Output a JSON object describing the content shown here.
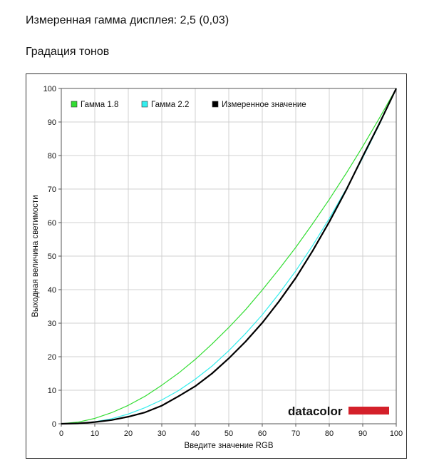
{
  "header": {
    "measured_gamma": "Измеренная гамма дисплея: 2,5 (0,03)",
    "section_title": "Градация тонов"
  },
  "logo": {
    "text": "datacolor",
    "accent_color": "#d4202a"
  },
  "chart_data": {
    "type": "line",
    "title": "",
    "xlabel": "Введите значение RGB",
    "ylabel": "Выходная величина светимости",
    "xlim": [
      0,
      100
    ],
    "ylim": [
      0,
      100
    ],
    "xticks": [
      "0",
      "10",
      "20",
      "30",
      "40",
      "50",
      "60",
      "70",
      "80",
      "90",
      "100"
    ],
    "yticks": [
      "0",
      "10",
      "20",
      "30",
      "40",
      "50",
      "60",
      "70",
      "80",
      "90",
      "100"
    ],
    "grid": true,
    "legend_position": "top-left",
    "x": [
      0,
      5,
      10,
      15,
      20,
      25,
      30,
      35,
      40,
      45,
      50,
      55,
      60,
      65,
      70,
      75,
      80,
      85,
      90,
      95,
      100
    ],
    "series": [
      {
        "name": "Гамма 1.8",
        "color": "#33dd33",
        "values": [
          0,
          0.5,
          1.6,
          3.3,
          5.5,
          8.2,
          11.5,
          15.1,
          19.2,
          23.8,
          28.7,
          34.0,
          39.9,
          46.1,
          52.6,
          59.6,
          66.9,
          74.6,
          82.7,
          91.2,
          100
        ]
      },
      {
        "name": "Гамма 2.2",
        "color": "#33eeee",
        "values": [
          0,
          0.1,
          0.6,
          1.5,
          2.9,
          4.8,
          7.1,
          9.9,
          13.3,
          17.2,
          21.8,
          26.9,
          32.5,
          38.8,
          45.6,
          53.1,
          61.2,
          69.9,
          79.3,
          89.3,
          100
        ]
      },
      {
        "name": "Измеренное значение",
        "color": "#000000",
        "values": [
          0,
          0.1,
          0.5,
          1.1,
          2.1,
          3.4,
          5.4,
          8.2,
          11.2,
          15.0,
          19.5,
          24.5,
          30.1,
          36.5,
          43.5,
          51.5,
          60.2,
          69.6,
          79.7,
          89.6,
          100
        ]
      }
    ]
  }
}
